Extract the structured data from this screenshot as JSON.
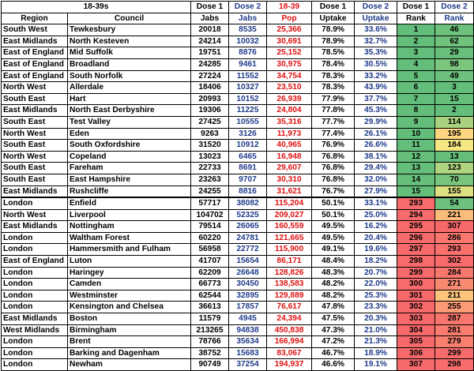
{
  "headers": {
    "row1": {
      "group": "18-39s",
      "dose1a": "Dose 1",
      "dose2a": "Dose 2",
      "pop": "18-39",
      "dose1b": "Dose 1",
      "dose2b": "Dose 2",
      "dose1c": "Dose 1",
      "dose2c": "Dose 2"
    },
    "row2": {
      "region": "Region",
      "council": "Council",
      "jabs1": "Jabs",
      "jabs2": "Jabs",
      "pop": "Pop",
      "uptake1": "Uptake",
      "uptake2": "Uptake",
      "rank1": "Rank",
      "rank2": "Rank"
    }
  },
  "rank_colors": {
    "green": "#63be7b",
    "yellow_green": "#c6db81",
    "yellow": "#ffeb84",
    "orange": "#fcb479",
    "red": "#f8696b"
  },
  "rows": [
    {
      "region": "South West",
      "council": "Tewkesbury",
      "d1": "20018",
      "d2": "8535",
      "pop": "25,366",
      "u1": "78.9%",
      "u2": "33.6%",
      "r1": "1",
      "r2": "46",
      "c1": "#63be7b",
      "c2": "#6cc17c"
    },
    {
      "region": "East Midlands",
      "council": "North Kesteven",
      "d1": "24214",
      "d2": "10032",
      "pop": "30,691",
      "u1": "78.9%",
      "u2": "32.7%",
      "r1": "2",
      "r2": "62",
      "c1": "#63be7b",
      "c2": "#70c27c"
    },
    {
      "region": "East of England",
      "council": "Mid Suffolk",
      "d1": "19751",
      "d2": "8876",
      "pop": "25,152",
      "u1": "78.5%",
      "u2": "35.3%",
      "r1": "3",
      "r2": "29",
      "c1": "#63be7b",
      "c2": "#67bf7b"
    },
    {
      "region": "East of England",
      "council": "Broadland",
      "d1": "24285",
      "d2": "9461",
      "pop": "30,975",
      "u1": "78.4%",
      "u2": "30.5%",
      "r1": "4",
      "r2": "98",
      "c1": "#63be7b",
      "c2": "#7cc57d"
    },
    {
      "region": "East of England",
      "council": "South Norfolk",
      "d1": "27224",
      "d2": "11552",
      "pop": "34,754",
      "u1": "78.3%",
      "u2": "33.2%",
      "r1": "5",
      "r2": "49",
      "c1": "#63be7b",
      "c2": "#6cc17c"
    },
    {
      "region": "North West",
      "council": "Allerdale",
      "d1": "18406",
      "d2": "10327",
      "pop": "23,510",
      "u1": "78.3%",
      "u2": "43.9%",
      "r1": "6",
      "r2": "3",
      "c1": "#63be7b",
      "c2": "#63be7b"
    },
    {
      "region": "South East",
      "council": "Hart",
      "d1": "20993",
      "d2": "10152",
      "pop": "26,939",
      "u1": "77.9%",
      "u2": "37.7%",
      "r1": "7",
      "r2": "15",
      "c1": "#63be7b",
      "c2": "#65bf7b"
    },
    {
      "region": "East Midlands",
      "council": "North East Derbyshire",
      "d1": "19306",
      "d2": "11225",
      "pop": "24,804",
      "u1": "77.8%",
      "u2": "45.3%",
      "r1": "8",
      "r2": "2",
      "c1": "#64be7b",
      "c2": "#63be7b"
    },
    {
      "region": "South East",
      "council": "Test Valley",
      "d1": "27425",
      "d2": "10555",
      "pop": "35,316",
      "u1": "77.7%",
      "u2": "29.9%",
      "r1": "9",
      "r2": "114",
      "c1": "#64be7b",
      "c2": "#a8d27f"
    },
    {
      "region": "North West",
      "council": "Eden",
      "d1": "9263",
      "d2": "3126",
      "pop": "11,973",
      "u1": "77.4%",
      "u2": "26.1%",
      "r1": "10",
      "r2": "195",
      "c1": "#64be7b",
      "c2": "#fed580"
    },
    {
      "region": "South East",
      "council": "South Oxfordshire",
      "d1": "31520",
      "d2": "10912",
      "pop": "40,965",
      "u1": "76.9%",
      "u2": "26.6%",
      "r1": "11",
      "r2": "184",
      "c1": "#64be7b",
      "c2": "#f5e883"
    },
    {
      "region": "North West",
      "council": "Copeland",
      "d1": "13023",
      "d2": "6465",
      "pop": "16,948",
      "u1": "76.8%",
      "u2": "38.1%",
      "r1": "12",
      "r2": "13",
      "c1": "#65bf7b",
      "c2": "#65bf7b"
    },
    {
      "region": "South East",
      "council": "Fareham",
      "d1": "22733",
      "d2": "8691",
      "pop": "29,607",
      "u1": "76.8%",
      "u2": "29.4%",
      "r1": "13",
      "r2": "123",
      "c1": "#65bf7b",
      "c2": "#b0d47f"
    },
    {
      "region": "South East",
      "council": "East Hampshire",
      "d1": "23263",
      "d2": "9707",
      "pop": "30,310",
      "u1": "76.8%",
      "u2": "32.0%",
      "r1": "14",
      "r2": "70",
      "c1": "#65bf7b",
      "c2": "#78c47d"
    },
    {
      "region": "East Midlands",
      "council": "Rushcliffe",
      "d1": "24255",
      "d2": "8816",
      "pop": "31,621",
      "u1": "76.7%",
      "u2": "27.9%",
      "r1": "15",
      "r2": "155",
      "c1": "#65bf7b",
      "c2": "#dde182"
    },
    {
      "region": "London",
      "council": "Enfield",
      "d1": "57717",
      "d2": "38082",
      "pop": "115,204",
      "u1": "50.1%",
      "u2": "33.1%",
      "r1": "293",
      "r2": "54",
      "c1": "#f86b6c",
      "c2": "#6cc17c",
      "sep": true
    },
    {
      "region": "North West",
      "council": "Liverpool",
      "d1": "104702",
      "d2": "52325",
      "pop": "209,027",
      "u1": "50.1%",
      "u2": "25.0%",
      "r1": "294",
      "r2": "221",
      "c1": "#f86b6c",
      "c2": "#fcbd7b"
    },
    {
      "region": "East Midlands",
      "council": "Nottingham",
      "d1": "79514",
      "d2": "26065",
      "pop": "160,559",
      "u1": "49.5%",
      "u2": "16.2%",
      "r1": "295",
      "r2": "307",
      "c1": "#f86a6b",
      "c2": "#f8696b"
    },
    {
      "region": "London",
      "council": "Waltham Forest",
      "d1": "60220",
      "d2": "24781",
      "pop": "121,665",
      "u1": "49.5%",
      "u2": "20.4%",
      "r1": "296",
      "r2": "286",
      "c1": "#f86a6b",
      "c2": "#f9776e"
    },
    {
      "region": "London",
      "council": "Hammersmith and Fulham",
      "d1": "56958",
      "d2": "22772",
      "pop": "115,900",
      "u1": "49.1%",
      "u2": "19.6%",
      "r1": "297",
      "r2": "293",
      "c1": "#f86a6b",
      "c2": "#f9716d"
    },
    {
      "region": "East of England",
      "council": "Luton",
      "d1": "41707",
      "d2": "15654",
      "pop": "86,171",
      "u1": "48.4%",
      "u2": "18.2%",
      "r1": "298",
      "r2": "302",
      "c1": "#f86a6b",
      "c2": "#f86b6c"
    },
    {
      "region": "London",
      "council": "Haringey",
      "d1": "62209",
      "d2": "26648",
      "pop": "128,826",
      "u1": "48.3%",
      "u2": "20.7%",
      "r1": "299",
      "r2": "284",
      "c1": "#f86a6b",
      "c2": "#f9786e"
    },
    {
      "region": "London",
      "council": "Camden",
      "d1": "66773",
      "d2": "30450",
      "pop": "138,583",
      "u1": "48.2%",
      "u2": "22.0%",
      "r1": "300",
      "r2": "271",
      "c1": "#f86a6b",
      "c2": "#fa8971"
    },
    {
      "region": "London",
      "council": "Westminster",
      "d1": "62544",
      "d2": "32895",
      "pop": "129,889",
      "u1": "48.2%",
      "u2": "25.3%",
      "r1": "301",
      "r2": "211",
      "c1": "#f8696b",
      "c2": "#fcc47c"
    },
    {
      "region": "London",
      "council": "Kensington and Chelsea",
      "d1": "36613",
      "d2": "17857",
      "pop": "76,617",
      "u1": "47.8%",
      "u2": "23.3%",
      "r1": "302",
      "r2": "255",
      "c1": "#f8696b",
      "c2": "#fb9a74"
    },
    {
      "region": "East Midlands",
      "council": "Boston",
      "d1": "11579",
      "d2": "4945",
      "pop": "24,394",
      "u1": "47.5%",
      "u2": "20.3%",
      "r1": "303",
      "r2": "287",
      "c1": "#f8696b",
      "c2": "#f9766e"
    },
    {
      "region": "West Midlands",
      "council": "Birmingham",
      "d1": "213265",
      "d2": "94838",
      "pop": "450,838",
      "u1": "47.3%",
      "u2": "21.0%",
      "r1": "304",
      "r2": "281",
      "c1": "#f8696b",
      "c2": "#f97c6f"
    },
    {
      "region": "London",
      "council": "Brent",
      "d1": "78766",
      "d2": "35634",
      "pop": "166,994",
      "u1": "47.2%",
      "u2": "21.3%",
      "r1": "305",
      "r2": "279",
      "c1": "#f8696b",
      "c2": "#fa7f6f"
    },
    {
      "region": "London",
      "council": "Barking and Dagenham",
      "d1": "38752",
      "d2": "15683",
      "pop": "83,067",
      "u1": "46.7%",
      "u2": "18.9%",
      "r1": "306",
      "r2": "299",
      "c1": "#f8696b",
      "c2": "#f86c6c"
    },
    {
      "region": "London",
      "council": "Newham",
      "d1": "90749",
      "d2": "37254",
      "pop": "194,937",
      "u1": "46.6%",
      "u2": "19.1%",
      "r1": "307",
      "r2": "298",
      "c1": "#f8696b",
      "c2": "#f86d6c"
    }
  ]
}
